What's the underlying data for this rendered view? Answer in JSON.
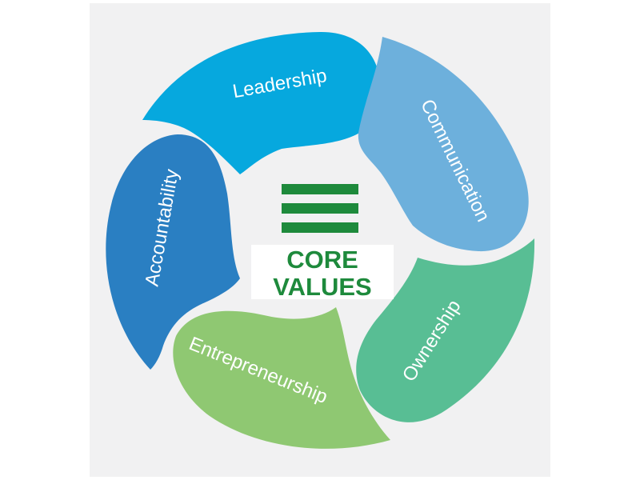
{
  "diagram": {
    "center": {
      "line1": "CORE",
      "line2": "VALUES",
      "logo_icon": "three-stacked-bars-icon",
      "color": "#1e8a3c"
    },
    "segments": [
      {
        "key": "leadership",
        "label": "Leadership",
        "color": "#06a8de"
      },
      {
        "key": "communication",
        "label": "Communication",
        "color": "#6db0dc"
      },
      {
        "key": "ownership",
        "label": "Ownership",
        "color": "#58be94"
      },
      {
        "key": "entrepreneurship",
        "label": "Entrepreneurship",
        "color": "#8fc872"
      },
      {
        "key": "accountability",
        "label": "Accountability",
        "color": "#2a7fc2"
      }
    ]
  }
}
